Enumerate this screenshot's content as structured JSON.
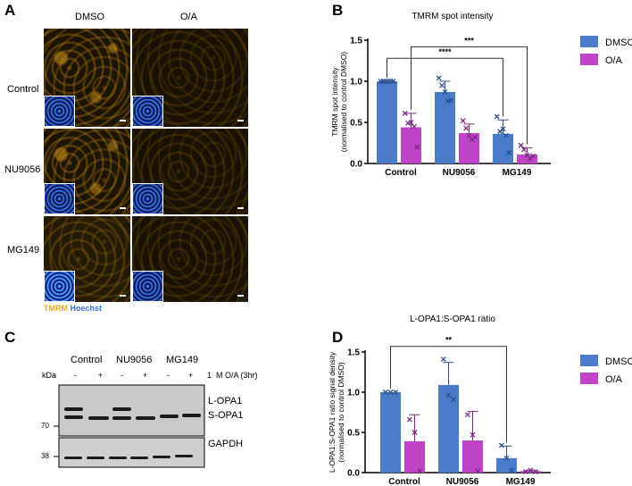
{
  "panel_labels": {
    "a": "A",
    "b": "B",
    "c": "C",
    "d": "D"
  },
  "panel_a": {
    "columns": [
      "DMSO",
      "O/A"
    ],
    "rows": [
      "Control",
      "NU9056",
      "MG149"
    ],
    "stain_tmrm": "TMRM",
    "stain_hoechst": "Hoechst",
    "colors": {
      "tmrm": "#e8a81c",
      "hoechst": "#3a6fe0"
    }
  },
  "panel_c": {
    "groups": [
      "Control",
      "NU9056",
      "MG149"
    ],
    "unit": "kDa",
    "treatment_signs": [
      "-",
      "+",
      "-",
      "+",
      "-",
      "+"
    ],
    "treatment_label": "1  M O/A (3hr)",
    "bands": [
      "L-OPA1",
      "S-OPA1",
      "GAPDH"
    ],
    "markers": [
      "70",
      "38"
    ]
  },
  "chart_data": [
    {
      "type": "bar",
      "title": "TMRM spot intensity",
      "ylabel": "TMRM spot intensity\n(normalised to control DMSO)",
      "ylabel_lines": [
        "TMRM spot intensity",
        "(normalised to control DMSO)"
      ],
      "categories": [
        "Control",
        "NU9056",
        "MG149"
      ],
      "ylim": [
        0,
        1.5
      ],
      "yticks": [
        "0.0",
        "0.5",
        "1.0",
        "1.5"
      ],
      "legend": "right",
      "series": [
        {
          "name": "DMSO",
          "color": "#4a7cc9",
          "values": [
            1.0,
            0.87,
            0.36
          ],
          "sd": [
            0,
            0.13,
            0.17
          ],
          "points": [
            [
              1,
              1,
              1,
              1,
              1,
              1
            ],
            [
              1.04,
              0.95,
              0.87,
              0.76,
              0.77
            ],
            [
              0.57,
              0.39,
              0.42,
              0.34,
              0.13
            ]
          ]
        },
        {
          "name": "O/A",
          "color": "#c044c8",
          "values": [
            0.44,
            0.37,
            0.11
          ],
          "sd": [
            0.17,
            0.11,
            0.08
          ],
          "points": [
            [
              0.61,
              0.49,
              0.5,
              0.45,
              0.2
            ],
            [
              0.52,
              0.43,
              0.34,
              0.29,
              0.32
            ],
            [
              0.22,
              0.17,
              0.1,
              0.06,
              0.09
            ]
          ]
        }
      ],
      "significance": [
        {
          "from": [
            0,
            0
          ],
          "to": [
            2,
            0
          ],
          "y": 1.28,
          "label": "****"
        },
        {
          "from": [
            0,
            1
          ],
          "to": [
            2,
            1
          ],
          "y": 1.42,
          "label": "***"
        }
      ]
    },
    {
      "type": "bar",
      "title": "L-OPA1:S-OPA1 ratio",
      "ylabel_lines": [
        "L-OPA1:S-OPA1 ratio signal density",
        "(normalised to control DMSO)"
      ],
      "categories": [
        "Control",
        "NU9056",
        "MG149"
      ],
      "ylim": [
        0,
        1.5
      ],
      "yticks": [
        "0.0",
        "0.5",
        "1.0",
        "1.5"
      ],
      "legend": "right",
      "series": [
        {
          "name": "DMSO",
          "color": "#4a7cc9",
          "values": [
            1.0,
            1.09,
            0.18
          ],
          "sd": [
            0,
            0.28,
            0.15
          ],
          "points": [
            [
              1,
              1,
              1
            ],
            [
              1.41,
              0.96,
              0.91
            ],
            [
              0.34,
              0.18,
              0.03
            ]
          ]
        },
        {
          "name": "O/A",
          "color": "#c044c8",
          "values": [
            0.39,
            0.4,
            0.02
          ],
          "sd": [
            0.33,
            0.36,
            0.01
          ],
          "points": [
            [
              0.66,
              0.5,
              0.02
            ],
            [
              0.72,
              0.47,
              0.02
            ],
            [
              0.01,
              0.03,
              0.01
            ]
          ]
        }
      ],
      "significance": [
        {
          "from": [
            0,
            0
          ],
          "to": [
            2,
            0
          ],
          "y": 1.57,
          "label": "**"
        }
      ]
    }
  ]
}
